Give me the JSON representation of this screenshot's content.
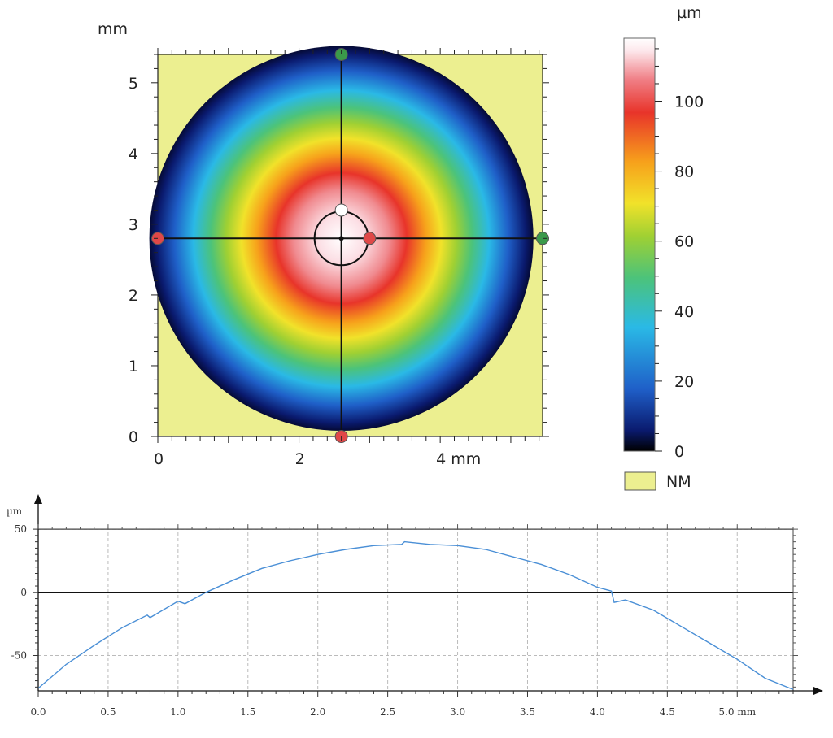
{
  "chart_data": [
    {
      "type": "heatmap",
      "title": "",
      "unit_y": "mm",
      "x_ticks": [
        "0",
        "2",
        "4 mm"
      ],
      "x_tick_values": [
        0,
        2,
        4
      ],
      "y_ticks": [
        "0",
        "1",
        "2",
        "3",
        "4",
        "5"
      ],
      "y_tick_values": [
        0,
        1,
        2,
        3,
        4,
        5
      ],
      "xlim": [
        0,
        5.45
      ],
      "ylim": [
        0,
        5.4
      ],
      "disc": {
        "center_x_mm": 2.6,
        "center_y_mm": 2.8,
        "radius_mm": 2.72,
        "peak_um": 118,
        "edge_um": 2
      },
      "profile_line_y_mm": 2.8,
      "profile_line_x_mm": 2.6,
      "markers": [
        {
          "name": "top",
          "x": 2.6,
          "y": 5.4,
          "color": "#3a9a4a"
        },
        {
          "name": "bottom",
          "x": 2.6,
          "y": 0.0,
          "color": "#e04848"
        },
        {
          "name": "left",
          "x": 0.0,
          "y": 2.8,
          "color": "#e04848"
        },
        {
          "name": "right",
          "x": 5.45,
          "y": 2.8,
          "color": "#3a9a4a"
        },
        {
          "name": "center-right",
          "x": 3.0,
          "y": 2.8,
          "color": "#e04848"
        },
        {
          "name": "center-top",
          "x": 2.6,
          "y": 3.2,
          "color": "#ffffff"
        }
      ],
      "background_color": "#ecef90",
      "colorbar": {
        "unit": "µm",
        "min": 0,
        "max": 118,
        "ticks": [
          "0",
          "20",
          "40",
          "60",
          "80",
          "100"
        ],
        "tick_values": [
          0,
          20,
          40,
          60,
          80,
          100
        ],
        "colors": [
          "#000000",
          "#0a1a6e",
          "#1f5fc8",
          "#2ab9e6",
          "#4cc37a",
          "#9fd033",
          "#f1e22a",
          "#f7a11b",
          "#e8342a",
          "#f07f86",
          "#fde8ec",
          "#ffffff"
        ]
      },
      "legend": {
        "label": "NM",
        "color": "#ecef90"
      }
    },
    {
      "type": "line",
      "title": "",
      "ylabel": "µm",
      "x_ticks": [
        "0.0",
        "0.5",
        "1.0",
        "1.5",
        "2.0",
        "2.5",
        "3.0",
        "3.5",
        "4.0",
        "4.5",
        "5.0 mm"
      ],
      "x_tick_values": [
        0,
        0.5,
        1.0,
        1.5,
        2.0,
        2.5,
        3.0,
        3.5,
        4.0,
        4.5,
        5.0
      ],
      "y_ticks": [
        "50",
        "0",
        "-50"
      ],
      "y_tick_values": [
        50,
        0,
        -50
      ],
      "xlim": [
        0,
        5.4
      ],
      "ylim": [
        -78,
        52
      ],
      "grid": true,
      "line_color": "#4a8fd6",
      "series": [
        {
          "x": [
            0.0,
            0.2,
            0.4,
            0.6,
            0.78,
            0.8,
            1.0,
            1.05,
            1.2,
            1.4,
            1.6,
            1.8,
            2.0,
            2.2,
            2.4,
            2.6,
            2.62,
            2.8,
            3.0,
            3.2,
            3.4,
            3.6,
            3.8,
            4.0,
            4.1,
            4.12,
            4.2,
            4.4,
            4.6,
            4.8,
            5.0,
            5.2,
            5.4
          ],
          "y": [
            -76,
            -57,
            -42,
            -28,
            -18,
            -20,
            -7,
            -9,
            0,
            10,
            19,
            25,
            30,
            34,
            37,
            38,
            40,
            38,
            37,
            34,
            28,
            22,
            14,
            4,
            1,
            -8,
            -6,
            -14,
            -27,
            -40,
            -53,
            -68,
            -77
          ]
        }
      ]
    }
  ]
}
